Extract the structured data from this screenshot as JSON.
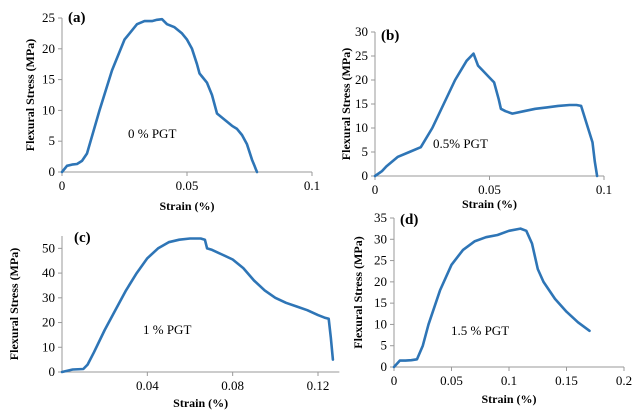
{
  "colors": {
    "series": "#2E75B6",
    "axis": "#999999"
  },
  "chart_data": [
    {
      "type": "line",
      "panel_label": "(a)",
      "annotation": "0 % PGT",
      "xlabel": "Strain (%)",
      "ylabel": "Flexural Stress (MPa)",
      "xlim": [
        0,
        0.1
      ],
      "ylim": [
        0,
        25
      ],
      "x_ticks": [
        0,
        0.05,
        0.1
      ],
      "x_tick_labels": [
        "0",
        "0.05",
        "0.1"
      ],
      "y_ticks": [
        0,
        5,
        10,
        15,
        20,
        25
      ],
      "y_tick_labels": [
        "0",
        "5",
        "10",
        "15",
        "20",
        "25"
      ],
      "series": [
        {
          "x": [
            0,
            0.002,
            0.004,
            0.006,
            0.008,
            0.01,
            0.015,
            0.02,
            0.025,
            0.03,
            0.033,
            0.036,
            0.038,
            0.04,
            0.042,
            0.045,
            0.048,
            0.05,
            0.052,
            0.054,
            0.055,
            0.056,
            0.058,
            0.06,
            0.062,
            0.065,
            0.068,
            0.07,
            0.072,
            0.074,
            0.076,
            0.077,
            0.0775,
            0.078
          ],
          "y": [
            0,
            1.0,
            1.2,
            1.3,
            1.8,
            3.0,
            10.0,
            16.5,
            21.5,
            24.0,
            24.5,
            24.5,
            24.7,
            24.8,
            24.0,
            23.5,
            22.5,
            21.5,
            20.0,
            17.5,
            16.0,
            15.5,
            14.5,
            12.5,
            9.5,
            8.5,
            7.5,
            7.0,
            6.0,
            4.5,
            2.0,
            1.0,
            0.5,
            0
          ]
        }
      ]
    },
    {
      "type": "line",
      "panel_label": "(b)",
      "annotation": "0.5% PGT",
      "xlabel": "Strain (%)",
      "ylabel": "Flexural Stress (MPa)",
      "xlim": [
        0,
        0.1
      ],
      "ylim": [
        0,
        30
      ],
      "x_ticks": [
        0,
        0.05,
        0.1
      ],
      "x_tick_labels": [
        "0",
        "0.05",
        "0.1"
      ],
      "y_ticks": [
        0,
        5,
        10,
        15,
        20,
        25,
        30
      ],
      "y_tick_labels": [
        "0",
        "5",
        "10",
        "15",
        "20",
        "25",
        "30"
      ],
      "series": [
        {
          "x": [
            0,
            0.003,
            0.005,
            0.01,
            0.015,
            0.02,
            0.025,
            0.03,
            0.035,
            0.04,
            0.043,
            0.045,
            0.047,
            0.05,
            0.052,
            0.054,
            0.055,
            0.057,
            0.06,
            0.065,
            0.07,
            0.075,
            0.08,
            0.085,
            0.088,
            0.09,
            0.093,
            0.095,
            0.096,
            0.097
          ],
          "y": [
            0,
            1.0,
            2.0,
            4.0,
            5.0,
            6.0,
            10.0,
            15.0,
            20.0,
            24.0,
            25.5,
            23.0,
            22.0,
            20.5,
            19.5,
            16.0,
            14.0,
            13.5,
            13.0,
            13.5,
            14.0,
            14.3,
            14.6,
            14.8,
            14.8,
            14.6,
            10.0,
            7.0,
            3.0,
            0
          ]
        }
      ]
    },
    {
      "type": "line",
      "panel_label": "(c)",
      "annotation": "1 % PGT",
      "xlabel": "Strain (%)",
      "ylabel": "Flexural Stress (MPa)",
      "xlim": [
        0,
        0.13
      ],
      "ylim": [
        0,
        55
      ],
      "x_ticks": [
        0.04,
        0.08,
        0.12
      ],
      "x_tick_labels": [
        "0.04",
        "0.08",
        "0.12"
      ],
      "y_ticks": [
        0,
        10,
        20,
        30,
        40,
        50
      ],
      "y_tick_labels": [
        "0",
        "10",
        "20",
        "30",
        "40",
        "50"
      ],
      "series": [
        {
          "x": [
            0,
            0.005,
            0.01,
            0.012,
            0.015,
            0.02,
            0.025,
            0.03,
            0.035,
            0.04,
            0.045,
            0.05,
            0.055,
            0.06,
            0.065,
            0.067,
            0.068,
            0.07,
            0.075,
            0.08,
            0.085,
            0.09,
            0.095,
            0.1,
            0.105,
            0.11,
            0.115,
            0.12,
            0.123,
            0.125,
            0.126,
            0.127
          ],
          "y": [
            0,
            1.0,
            1.2,
            3.0,
            8.0,
            17.0,
            25.0,
            33.0,
            40.0,
            46.0,
            50.0,
            52.5,
            53.5,
            54.0,
            54.0,
            53.5,
            50.0,
            49.5,
            47.5,
            45.5,
            42.0,
            37.0,
            33.0,
            30.0,
            28.0,
            26.5,
            25.0,
            23.0,
            22.0,
            21.5,
            14.0,
            5.0
          ]
        }
      ]
    },
    {
      "type": "line",
      "panel_label": "(d)",
      "annotation": "1.5 % PGT",
      "xlabel": "Strain (%)",
      "ylabel": "Flexural Stress (MPa)",
      "xlim": [
        0,
        0.2
      ],
      "ylim": [
        0,
        35
      ],
      "x_ticks": [
        0,
        0.05,
        0.1,
        0.15,
        0.2
      ],
      "x_tick_labels": [
        "0",
        "0.05",
        "0.1",
        "0.15",
        "0.2"
      ],
      "y_ticks": [
        0,
        5,
        10,
        15,
        20,
        25,
        30,
        35
      ],
      "y_tick_labels": [
        "0",
        "5",
        "10",
        "15",
        "20",
        "25",
        "30",
        "35"
      ],
      "series": [
        {
          "x": [
            0,
            0.005,
            0.01,
            0.015,
            0.02,
            0.025,
            0.03,
            0.04,
            0.05,
            0.06,
            0.07,
            0.08,
            0.09,
            0.1,
            0.11,
            0.115,
            0.12,
            0.125,
            0.13,
            0.14,
            0.15,
            0.16,
            0.17
          ],
          "y": [
            0,
            1.5,
            1.5,
            1.6,
            1.8,
            5.0,
            10.0,
            18.0,
            24.0,
            27.5,
            29.5,
            30.5,
            31.0,
            32.0,
            32.5,
            32.0,
            29.0,
            23.0,
            20.0,
            16.0,
            13.0,
            10.5,
            8.5
          ]
        }
      ]
    }
  ]
}
